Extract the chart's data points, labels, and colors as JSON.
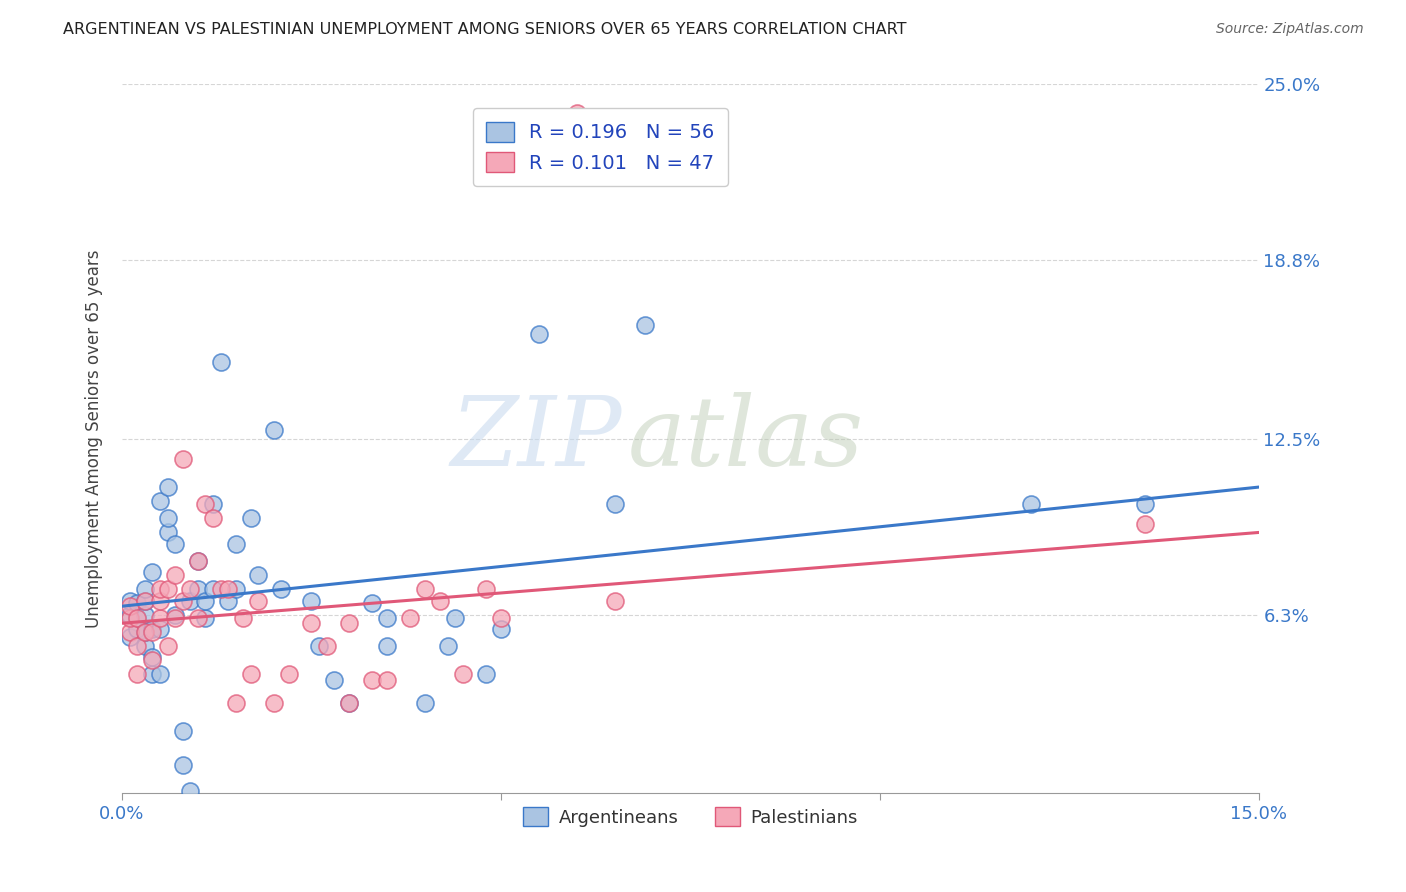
{
  "title": "ARGENTINEAN VS PALESTINIAN UNEMPLOYMENT AMONG SENIORS OVER 65 YEARS CORRELATION CHART",
  "source": "Source: ZipAtlas.com",
  "ylabel": "Unemployment Among Seniors over 65 years",
  "xlim": [
    0.0,
    0.15
  ],
  "ylim": [
    0.0,
    0.25
  ],
  "xticks": [
    0.0,
    0.05,
    0.1,
    0.15
  ],
  "xticklabels": [
    "0.0%",
    "",
    "",
    "15.0%"
  ],
  "ytick_labels_right": [
    "6.3%",
    "12.5%",
    "18.8%",
    "25.0%"
  ],
  "ytick_values_right": [
    0.063,
    0.125,
    0.188,
    0.25
  ],
  "blue_color": "#aac4e2",
  "pink_color": "#f5a8b8",
  "blue_line_color": "#3a78c9",
  "pink_line_color": "#e05878",
  "right_axis_color": "#3a78c9",
  "legend_text_color": "#2244bb",
  "background_color": "#ffffff",
  "watermark_zip": "ZIP",
  "watermark_atlas": "atlas",
  "grid_color": "#cccccc",
  "title_color": "#222222",
  "source_color": "#666666",
  "arg_line_start_y": 0.066,
  "arg_line_end_y": 0.108,
  "pal_line_start_y": 0.06,
  "pal_line_end_y": 0.092,
  "argentinean_x": [
    0.001,
    0.001,
    0.001,
    0.002,
    0.002,
    0.002,
    0.003,
    0.003,
    0.003,
    0.003,
    0.003,
    0.004,
    0.004,
    0.004,
    0.004,
    0.005,
    0.005,
    0.005,
    0.006,
    0.006,
    0.006,
    0.007,
    0.007,
    0.008,
    0.008,
    0.009,
    0.009,
    0.01,
    0.01,
    0.011,
    0.011,
    0.012,
    0.012,
    0.013,
    0.014,
    0.015,
    0.015,
    0.017,
    0.018,
    0.02,
    0.021,
    0.025,
    0.026,
    0.028,
    0.03,
    0.033,
    0.035,
    0.035,
    0.04,
    0.043,
    0.044,
    0.048,
    0.05,
    0.055,
    0.065,
    0.069,
    0.12,
    0.135
  ],
  "argentinean_y": [
    0.063,
    0.068,
    0.055,
    0.058,
    0.062,
    0.067,
    0.052,
    0.057,
    0.063,
    0.068,
    0.072,
    0.042,
    0.048,
    0.058,
    0.078,
    0.042,
    0.058,
    0.103,
    0.092,
    0.097,
    0.108,
    0.063,
    0.088,
    0.01,
    0.022,
    0.001,
    0.068,
    0.072,
    0.082,
    0.062,
    0.068,
    0.072,
    0.102,
    0.152,
    0.068,
    0.072,
    0.088,
    0.097,
    0.077,
    0.128,
    0.072,
    0.068,
    0.052,
    0.04,
    0.032,
    0.067,
    0.052,
    0.062,
    0.032,
    0.052,
    0.062,
    0.042,
    0.058,
    0.162,
    0.102,
    0.165,
    0.102,
    0.102
  ],
  "palestinian_x": [
    0.001,
    0.001,
    0.001,
    0.002,
    0.002,
    0.002,
    0.003,
    0.003,
    0.004,
    0.004,
    0.005,
    0.005,
    0.005,
    0.006,
    0.006,
    0.007,
    0.007,
    0.008,
    0.008,
    0.009,
    0.01,
    0.01,
    0.011,
    0.012,
    0.013,
    0.014,
    0.015,
    0.016,
    0.017,
    0.018,
    0.02,
    0.022,
    0.025,
    0.027,
    0.03,
    0.03,
    0.033,
    0.035,
    0.038,
    0.04,
    0.042,
    0.045,
    0.048,
    0.05,
    0.055,
    0.06,
    0.065,
    0.135
  ],
  "palestinian_y": [
    0.057,
    0.062,
    0.066,
    0.042,
    0.052,
    0.062,
    0.057,
    0.068,
    0.047,
    0.057,
    0.062,
    0.068,
    0.072,
    0.052,
    0.072,
    0.062,
    0.077,
    0.068,
    0.118,
    0.072,
    0.062,
    0.082,
    0.102,
    0.097,
    0.072,
    0.072,
    0.032,
    0.062,
    0.042,
    0.068,
    0.032,
    0.042,
    0.06,
    0.052,
    0.032,
    0.06,
    0.04,
    0.04,
    0.062,
    0.072,
    0.068,
    0.042,
    0.072,
    0.062,
    0.22,
    0.24,
    0.068,
    0.095
  ]
}
